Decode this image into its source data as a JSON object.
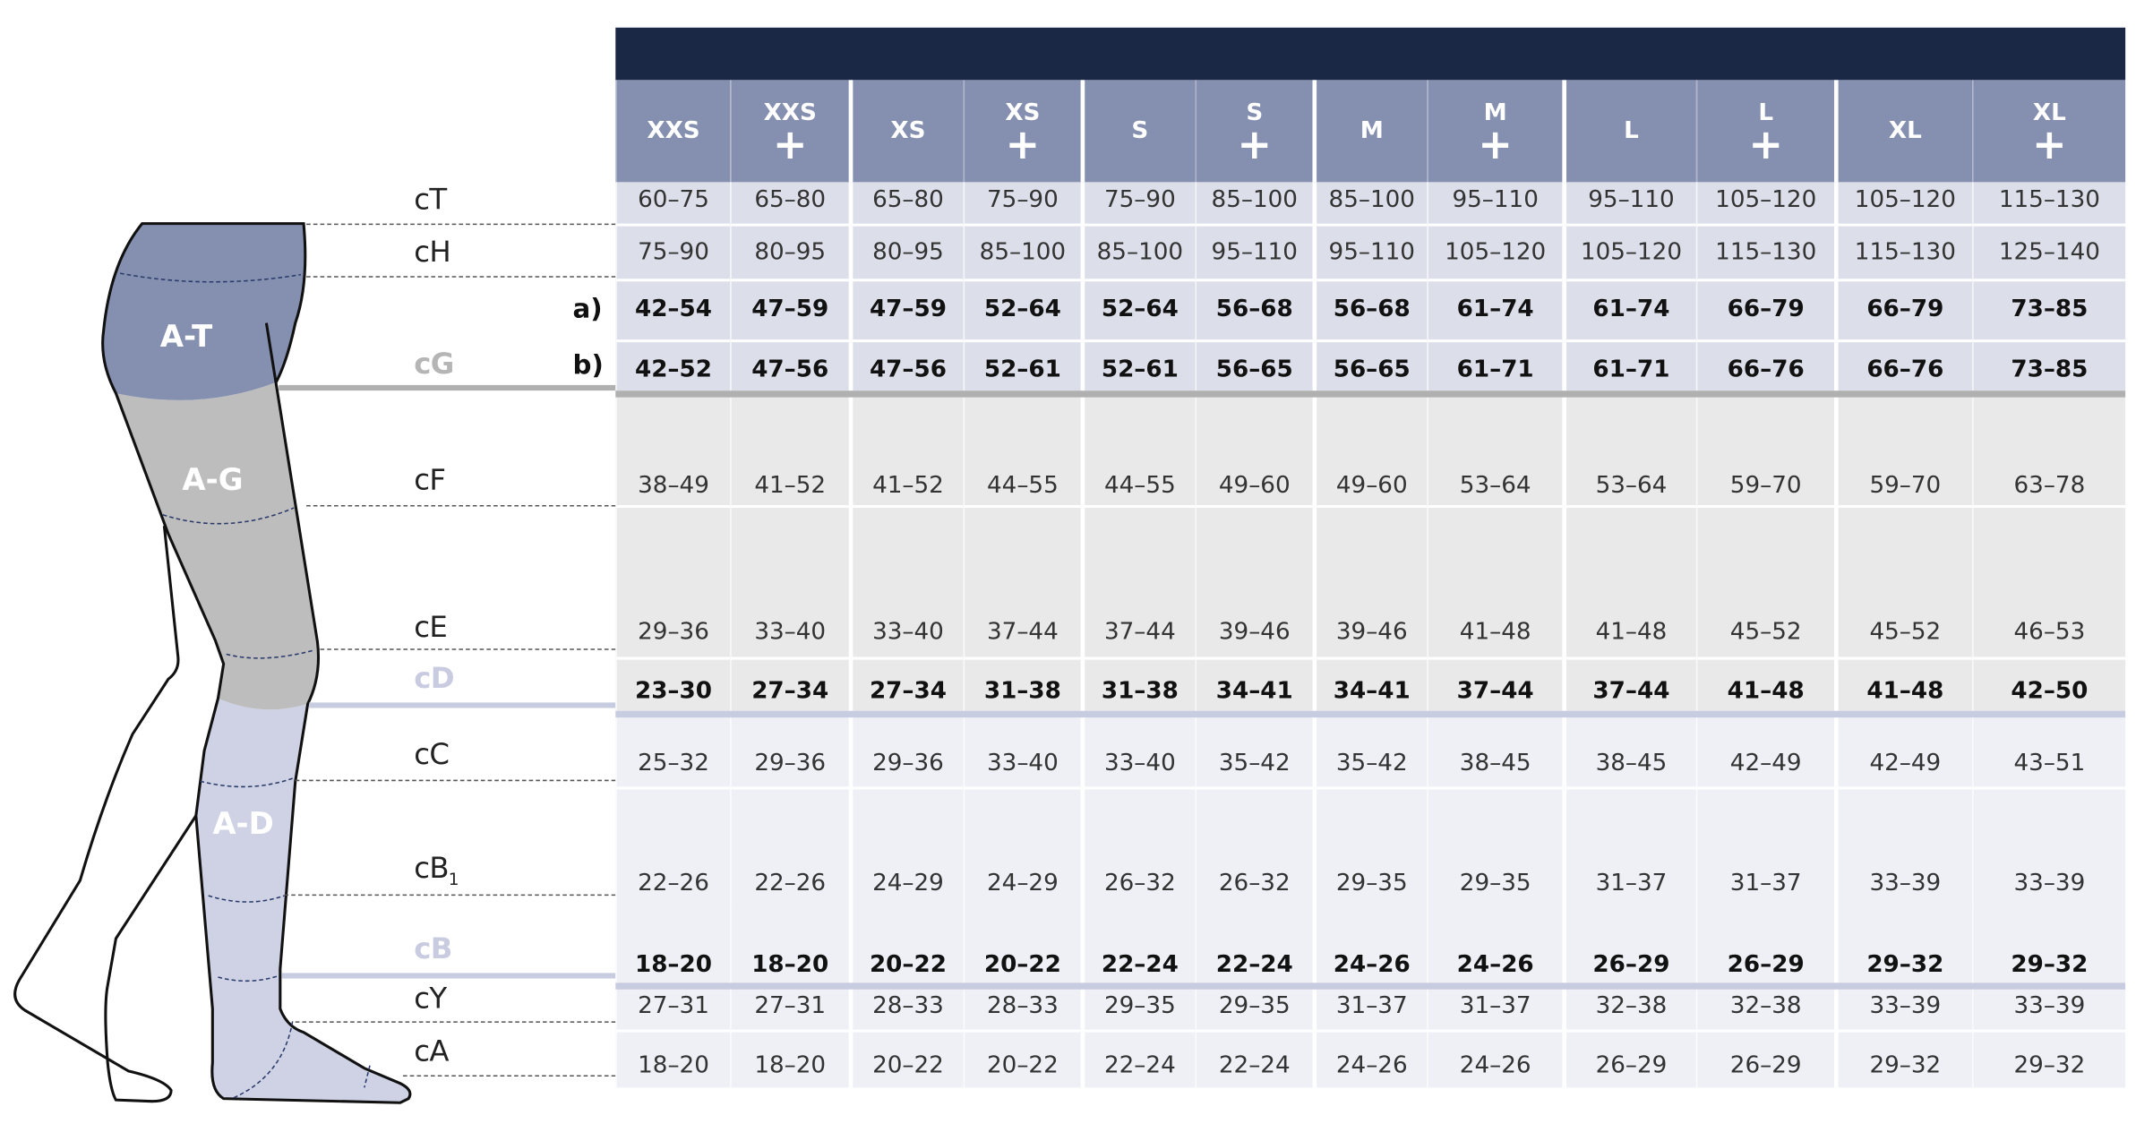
{
  "colors": {
    "navy": "#1b2845",
    "header": "#8590b0",
    "top_rows": "#dcdfe9",
    "mid_rows": "#e9e9e9",
    "low_rows": "#eef0f6",
    "gray_bar": "#b0b0b0",
    "blue_bar": "#c8cce0",
    "zone_t": "#8590b0",
    "zone_g": "#bdbdbd",
    "zone_d": "#ced2e4"
  },
  "zones": {
    "t": "A-T",
    "g": "A-G",
    "d": "A-D"
  },
  "left_labels": {
    "cT": "cT",
    "cH": "cH",
    "cG": "cG",
    "cF": "cF",
    "cE": "cE",
    "cD": "cD",
    "cC": "cC",
    "cB1": "cB",
    "cB1_sub": "1",
    "cB": "cB",
    "cY": "cY",
    "cA": "cA"
  },
  "row_markers": {
    "a": "a)",
    "b": "b)"
  },
  "header": {
    "sizes": [
      {
        "label": "XXS",
        "plus": ""
      },
      {
        "label": "XXS",
        "plus": "+"
      },
      {
        "label": "XS",
        "plus": ""
      },
      {
        "label": "XS",
        "plus": "+"
      },
      {
        "label": "S",
        "plus": ""
      },
      {
        "label": "S",
        "plus": "+"
      },
      {
        "label": "M",
        "plus": ""
      },
      {
        "label": "M",
        "plus": "+"
      },
      {
        "label": "L",
        "plus": ""
      },
      {
        "label": "L",
        "plus": "+"
      },
      {
        "label": "XL",
        "plus": ""
      },
      {
        "label": "XL",
        "plus": "+"
      }
    ]
  },
  "rows": [
    {
      "id": "cT",
      "bold": false,
      "values": [
        "60–75",
        "65–80",
        "65–80",
        "75–90",
        "75–90",
        "85–100",
        "85–100",
        "95–110",
        "95–110",
        "105–120",
        "105–120",
        "115–130"
      ]
    },
    {
      "id": "cH",
      "bold": false,
      "values": [
        "75–90",
        "80–95",
        "80–95",
        "85–100",
        "85–100",
        "95–110",
        "95–110",
        "105–120",
        "105–120",
        "115–130",
        "115–130",
        "125–140"
      ]
    },
    {
      "id": "cG-a",
      "bold": true,
      "values": [
        "42–54",
        "47–59",
        "47–59",
        "52–64",
        "52–64",
        "56–68",
        "56–68",
        "61–74",
        "61–74",
        "66–79",
        "66–79",
        "73–85"
      ]
    },
    {
      "id": "cG-b",
      "bold": true,
      "values": [
        "42–52",
        "47–56",
        "47–56",
        "52–61",
        "52–61",
        "56–65",
        "56–65",
        "61–71",
        "61–71",
        "66–76",
        "66–76",
        "73–85"
      ]
    },
    {
      "id": "cF",
      "bold": false,
      "values": [
        "38–49",
        "41–52",
        "41–52",
        "44–55",
        "44–55",
        "49–60",
        "49–60",
        "53–64",
        "53–64",
        "59–70",
        "59–70",
        "63–78"
      ]
    },
    {
      "id": "cE",
      "bold": false,
      "values": [
        "29–36",
        "33–40",
        "33–40",
        "37–44",
        "37–44",
        "39–46",
        "39–46",
        "41–48",
        "41–48",
        "45–52",
        "45–52",
        "46–53"
      ]
    },
    {
      "id": "cD",
      "bold": true,
      "values": [
        "23–30",
        "27–34",
        "27–34",
        "31–38",
        "31–38",
        "34–41",
        "34–41",
        "37–44",
        "37–44",
        "41–48",
        "41–48",
        "42–50"
      ]
    },
    {
      "id": "cC",
      "bold": false,
      "values": [
        "25–32",
        "29–36",
        "29–36",
        "33–40",
        "33–40",
        "35–42",
        "35–42",
        "38–45",
        "38–45",
        "42–49",
        "42–49",
        "43–51"
      ]
    },
    {
      "id": "cB1",
      "bold": false,
      "values": [
        "22–26",
        "22–26",
        "24–29",
        "24–29",
        "26–32",
        "26–32",
        "29–35",
        "29–35",
        "31–37",
        "31–37",
        "33–39",
        "33–39"
      ]
    },
    {
      "id": "cB",
      "bold": true,
      "values": [
        "18–20",
        "18–20",
        "20–22",
        "20–22",
        "22–24",
        "22–24",
        "24–26",
        "24–26",
        "26–29",
        "26–29",
        "29–32",
        "29–32"
      ]
    },
    {
      "id": "cY",
      "bold": false,
      "values": [
        "27–31",
        "27–31",
        "28–33",
        "28–33",
        "29–35",
        "29–35",
        "31–37",
        "31–37",
        "32–38",
        "32–38",
        "33–39",
        "33–39"
      ]
    },
    {
      "id": "cA",
      "bold": false,
      "values": [
        "18–20",
        "18–20",
        "20–22",
        "20–22",
        "22–24",
        "22–24",
        "24–26",
        "24–26",
        "26–29",
        "26–29",
        "29–32",
        "29–32"
      ]
    }
  ]
}
